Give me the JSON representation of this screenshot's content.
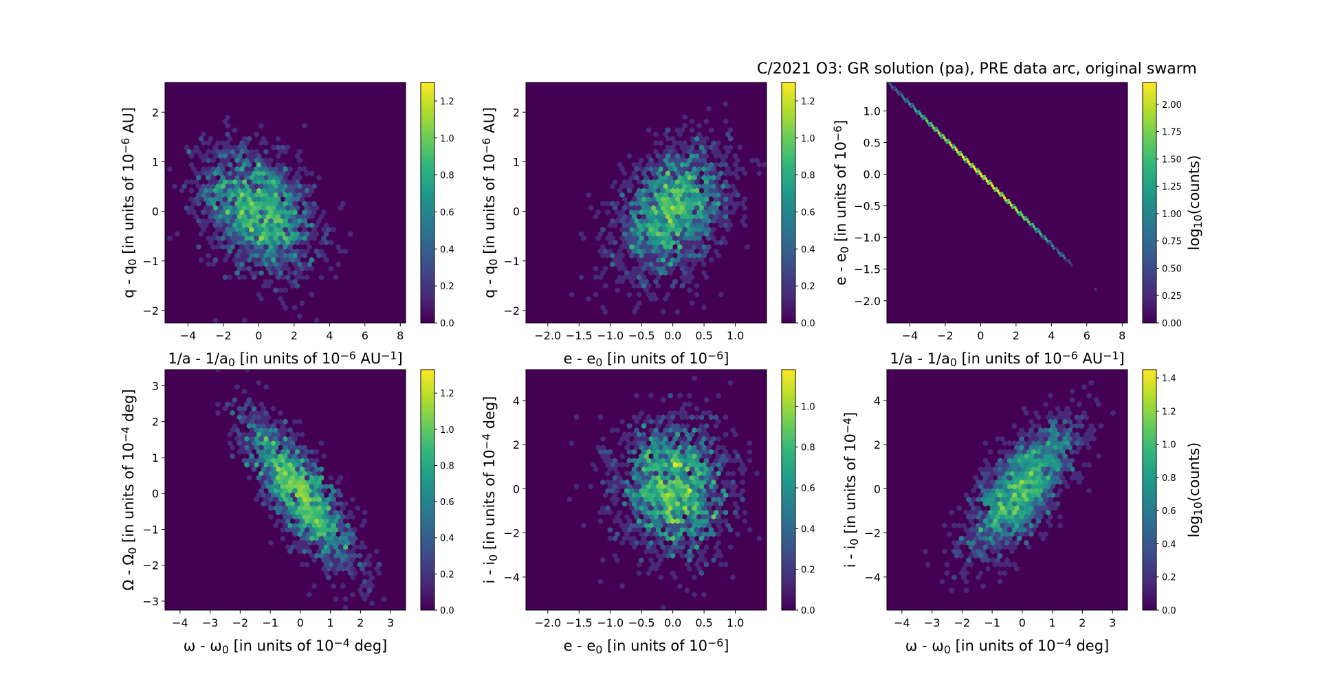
{
  "figure": {
    "title": "C/2021 O3: GR solution (pa), PRE data arc, original swarm"
  },
  "colors": {
    "background": "#440154",
    "viridis": [
      "#440154",
      "#482878",
      "#3e4989",
      "#31688e",
      "#26828e",
      "#1f9e89",
      "#35b779",
      "#6ece58",
      "#b5de2b",
      "#fde725"
    ]
  },
  "chart_data": [
    {
      "type": "heatmap",
      "subtype": "hexbin",
      "panel": "top-left",
      "xlabel": "1/a - 1/a₀ [in units of 10⁻⁶ AU⁻¹]",
      "ylabel": "q - q₀ [in units of 10⁻⁶ AU]",
      "xlim": [
        -5.3,
        8.3
      ],
      "ylim": [
        -2.25,
        2.6
      ],
      "xticks": [
        "−4",
        "−2",
        "0",
        "2",
        "4",
        "6",
        "8"
      ],
      "xtick_values": [
        -4,
        -2,
        0,
        2,
        4,
        6,
        8
      ],
      "yticks": [
        "−2",
        "−1",
        "0",
        "1",
        "2"
      ],
      "ytick_values": [
        -2,
        -1,
        0,
        1,
        2
      ],
      "colorbar": {
        "label": "",
        "range": [
          0,
          1.3
        ],
        "ticks": [
          "0.0",
          "0.2",
          "0.4",
          "0.6",
          "0.8",
          "1.0",
          "1.2"
        ],
        "tick_values": [
          0,
          0.2,
          0.4,
          0.6,
          0.8,
          1.0,
          1.2
        ]
      },
      "distribution": {
        "mean": [
          0,
          0
        ],
        "std": [
          1.6,
          0.65
        ],
        "corr": -0.35,
        "n": 2000
      }
    },
    {
      "type": "heatmap",
      "subtype": "hexbin",
      "panel": "top-middle",
      "xlabel": "e - e₀ [in units of 10⁻⁶]",
      "ylabel": "q - q₀ [in units of 10⁻⁶ AU]",
      "xlim": [
        -2.35,
        1.5
      ],
      "ylim": [
        -2.25,
        2.6
      ],
      "xticks": [
        "−2.0",
        "−1.5",
        "−1.0",
        "−0.5",
        "0.0",
        "0.5",
        "1.0"
      ],
      "xtick_values": [
        -2.0,
        -1.5,
        -1.0,
        -0.5,
        0.0,
        0.5,
        1.0
      ],
      "yticks": [
        "−2",
        "−1",
        "0",
        "1",
        "2"
      ],
      "ytick_values": [
        -2,
        -1,
        0,
        1,
        2
      ],
      "colorbar": {
        "label": "",
        "range": [
          0,
          1.3
        ],
        "ticks": [
          "0.0",
          "0.2",
          "0.4",
          "0.6",
          "0.8",
          "1.0",
          "1.2"
        ],
        "tick_values": [
          0,
          0.2,
          0.4,
          0.6,
          0.8,
          1.0,
          1.2
        ]
      },
      "distribution": {
        "mean": [
          0,
          0
        ],
        "std": [
          0.45,
          0.65
        ],
        "corr": 0.35,
        "n": 2000
      }
    },
    {
      "type": "heatmap",
      "subtype": "hexbin",
      "panel": "top-right",
      "xlabel": "1/a - 1/a₀ [in units of 10⁻⁶ AU⁻¹]",
      "ylabel": "e - e₀ [in units of 10⁻⁶]",
      "xlim": [
        -5.3,
        8.3
      ],
      "ylim": [
        -2.35,
        1.45
      ],
      "xticks": [
        "−4",
        "−2",
        "0",
        "2",
        "4",
        "6",
        "8"
      ],
      "xtick_values": [
        -4,
        -2,
        0,
        2,
        4,
        6,
        8
      ],
      "yticks": [
        "−2.0",
        "−1.5",
        "−1.0",
        "−0.5",
        "0.0",
        "0.5",
        "1.0"
      ],
      "ytick_values": [
        -2.0,
        -1.5,
        -1.0,
        -0.5,
        0.0,
        0.5,
        1.0
      ],
      "colorbar": {
        "label": "log₁₀(counts)",
        "range": [
          0,
          2.2
        ],
        "ticks": [
          "0.00",
          "0.25",
          "0.50",
          "0.75",
          "1.00",
          "1.25",
          "1.50",
          "1.75",
          "2.00"
        ],
        "tick_values": [
          0,
          0.25,
          0.5,
          0.75,
          1.0,
          1.25,
          1.5,
          1.75,
          2.0
        ]
      },
      "distribution": {
        "line": {
          "slope": -0.278,
          "intercept": 0.0
        },
        "x_range": [
          -5.3,
          5.3
        ],
        "outlier": [
          6.5,
          -1.83
        ]
      }
    },
    {
      "type": "heatmap",
      "subtype": "hexbin",
      "panel": "bottom-left",
      "xlabel": "ω - ω₀ [in units of 10⁻⁴ deg]",
      "ylabel": "Ω - Ω₀ [in units of 10⁻⁴ deg]",
      "xlim": [
        -4.5,
        3.5
      ],
      "ylim": [
        -3.25,
        3.45
      ],
      "xticks": [
        "−4",
        "−3",
        "−2",
        "−1",
        "0",
        "1",
        "2",
        "3"
      ],
      "xtick_values": [
        -4,
        -3,
        -2,
        -1,
        0,
        1,
        2,
        3
      ],
      "yticks": [
        "−3",
        "−2",
        "−1",
        "0",
        "1",
        "2",
        "3"
      ],
      "ytick_values": [
        -3,
        -2,
        -1,
        0,
        1,
        2,
        3
      ],
      "colorbar": {
        "label": "",
        "range": [
          0,
          1.33
        ],
        "ticks": [
          "0.0",
          "0.2",
          "0.4",
          "0.6",
          "0.8",
          "1.0",
          "1.2"
        ],
        "tick_values": [
          0,
          0.2,
          0.4,
          0.6,
          0.8,
          1.0,
          1.2
        ]
      },
      "distribution": {
        "mean": [
          0,
          0
        ],
        "std": [
          0.9,
          1.05
        ],
        "corr": -0.8,
        "n": 2000
      }
    },
    {
      "type": "heatmap",
      "subtype": "hexbin",
      "panel": "bottom-middle",
      "xlabel": "e - e₀ [in units of 10⁻⁶]",
      "ylabel": "i - i₀ [in units of 10⁻⁴ deg]",
      "xlim": [
        -2.35,
        1.5
      ],
      "ylim": [
        -5.5,
        5.4
      ],
      "xticks": [
        "−2.0",
        "−1.5",
        "−1.0",
        "−0.5",
        "0.0",
        "0.5",
        "1.0"
      ],
      "xtick_values": [
        -2.0,
        -1.5,
        -1.0,
        -0.5,
        0.0,
        0.5,
        1.0
      ],
      "yticks": [
        "−4",
        "−2",
        "0",
        "2",
        "4"
      ],
      "ytick_values": [
        -4,
        -2,
        0,
        2,
        4
      ],
      "colorbar": {
        "label": "",
        "range": [
          0,
          1.18
        ],
        "ticks": [
          "0.0",
          "0.2",
          "0.4",
          "0.6",
          "0.8",
          "1.0"
        ],
        "tick_values": [
          0,
          0.2,
          0.4,
          0.6,
          0.8,
          1.0
        ]
      },
      "distribution": {
        "mean": [
          0,
          0
        ],
        "std": [
          0.45,
          1.55
        ],
        "corr": 0.0,
        "n": 2000
      }
    },
    {
      "type": "heatmap",
      "subtype": "hexbin",
      "panel": "bottom-right",
      "xlabel": "ω - ω₀ [in units of 10⁻⁴ deg]",
      "ylabel": "i - i₀ [in units of 10⁻⁴]",
      "xlim": [
        -4.5,
        3.5
      ],
      "ylim": [
        -5.5,
        5.4
      ],
      "xticks": [
        "−4",
        "−3",
        "−2",
        "−1",
        "0",
        "1",
        "2",
        "3"
      ],
      "xtick_values": [
        -4,
        -3,
        -2,
        -1,
        0,
        1,
        2,
        3
      ],
      "yticks": [
        "−4",
        "−2",
        "0",
        "2",
        "4"
      ],
      "ytick_values": [
        -4,
        -2,
        0,
        2,
        4
      ],
      "colorbar": {
        "label": "log₁₀(counts)",
        "range": [
          0,
          1.45
        ],
        "ticks": [
          "0.0",
          "0.2",
          "0.4",
          "0.6",
          "0.8",
          "1.0",
          "1.2",
          "1.4"
        ],
        "tick_values": [
          0,
          0.2,
          0.4,
          0.6,
          0.8,
          1.0,
          1.2,
          1.4
        ]
      },
      "distribution": {
        "mean": [
          0,
          0
        ],
        "std": [
          0.9,
          1.55
        ],
        "corr": 0.72,
        "n": 2000
      }
    }
  ]
}
